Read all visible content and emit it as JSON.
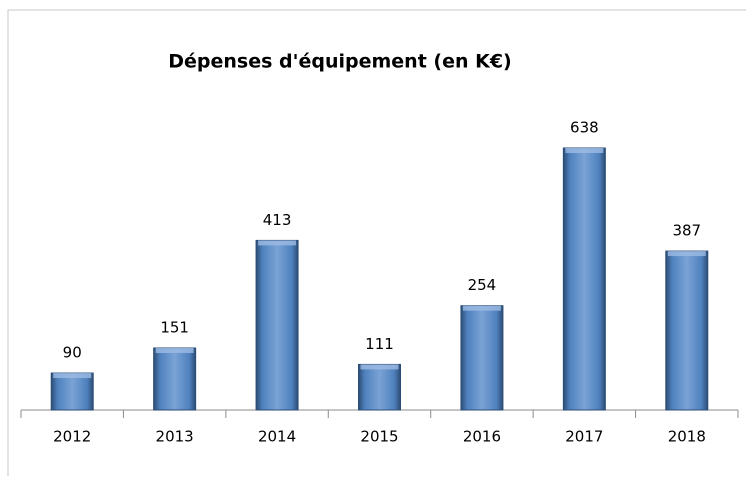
{
  "chart_data": {
    "type": "bar",
    "title": "Dépenses d'équipement (en K€)",
    "categories": [
      "2012",
      "2013",
      "2014",
      "2015",
      "2016",
      "2017",
      "2018"
    ],
    "values": [
      90,
      151,
      413,
      111,
      254,
      638,
      387
    ],
    "color": "#4f81bd"
  }
}
